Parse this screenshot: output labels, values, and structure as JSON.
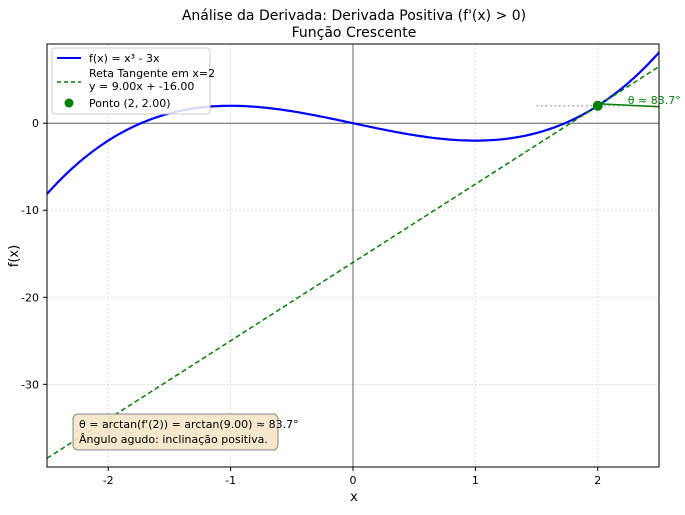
{
  "chart_data": {
    "type": "line",
    "title": "Análise da Derivada: Derivada Positiva (f'(x) > 0)",
    "subtitle": "Função Crescente",
    "xlabel": "x",
    "ylabel": "f(x)",
    "xlim": [
      -2.5,
      2.5
    ],
    "ylim": [
      -39.5,
      9.1
    ],
    "xticks": [
      -2,
      -1,
      0,
      1,
      2
    ],
    "yticks": [
      -30,
      -20,
      -10,
      0
    ],
    "grid": true,
    "legend_position": "top-left",
    "series": [
      {
        "name": "f(x) = x³ - 3x",
        "kind": "function",
        "expression": "x^3 - 3x",
        "color": "#0000ff",
        "style": "solid"
      },
      {
        "name": "Reta Tangente em x=2",
        "name_line2": "y = 9.00x + -16.00",
        "kind": "line",
        "slope": 9.0,
        "intercept": -16.0,
        "color": "#008000",
        "style": "dashed"
      },
      {
        "name": "Ponto (2, 2.00)",
        "kind": "point",
        "x": 2,
        "y": 2.0,
        "color": "#008000"
      }
    ],
    "angle_label": "θ ≈ 83.7°",
    "reference_line": {
      "x": [
        1.5,
        2.5
      ],
      "y": 2.0,
      "color": "#808080",
      "style": "dotted"
    },
    "annotation": {
      "line1": "θ = arctan(f'(2)) = arctan(9.00) ≈ 83.7°",
      "line2": "Ângulo agudo: inclinação positiva.",
      "background": "#f5e6c8"
    }
  }
}
